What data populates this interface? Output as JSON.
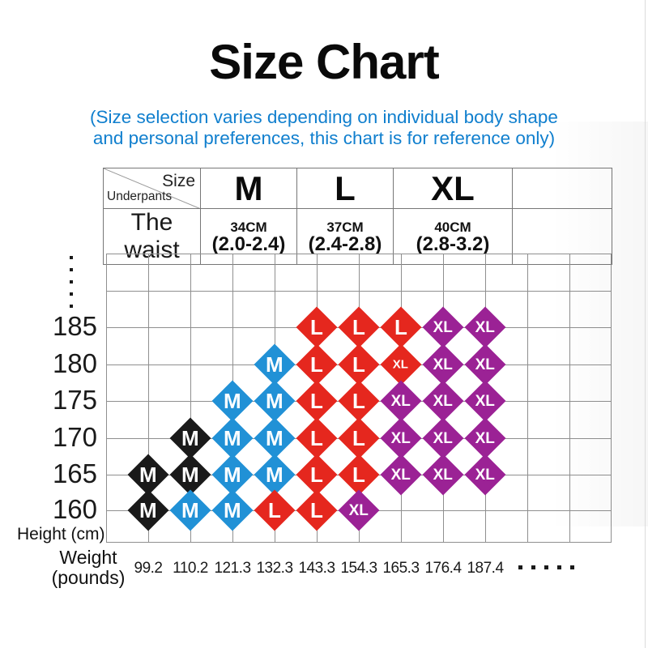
{
  "title": "Size Chart",
  "subtitle": {
    "line1": "(Size selection varies depending on individual body shape",
    "line2": "and personal preferences, this chart is for reference only)",
    "color": "#107fce"
  },
  "header_table": {
    "corner_top_right": "Size",
    "corner_bottom_left": "Underpants",
    "row2_label": "The waist",
    "columns": [
      {
        "size": "M",
        "waist_cm": "34CM",
        "waist_range": "(2.0-2.4)"
      },
      {
        "size": "L",
        "waist_cm": "37CM",
        "waist_range": "(2.4-2.8)"
      },
      {
        "size": "XL",
        "waist_cm": "40CM",
        "waist_range": "(2.8-3.2)"
      }
    ]
  },
  "axes": {
    "y_title": "Height (cm)",
    "x_title_line1": "Weight",
    "x_title_line2": "(pounds)",
    "y_more_dots": 5,
    "x_more_dots": 5
  },
  "colors": {
    "black": "#1a1a1a",
    "blue": "#2191d6",
    "red": "#e5271e",
    "purple": "#9b2295"
  },
  "chart_data": {
    "type": "scatter",
    "title": "Size Chart",
    "xlabel": "Weight (pounds)",
    "ylabel": "Height (cm)",
    "x_ticks": [
      "99.2",
      "110.2",
      "121.3",
      "132.3",
      "143.3",
      "154.3",
      "165.3",
      "176.4",
      "187.4"
    ],
    "y_ticks": [
      185,
      180,
      175,
      170,
      165,
      160
    ],
    "legend": "diamond markers labeled with size; color indicates size group",
    "points": [
      {
        "height": 185,
        "weight": "143.3",
        "size": "L",
        "color": "red"
      },
      {
        "height": 185,
        "weight": "154.3",
        "size": "L",
        "color": "red"
      },
      {
        "height": 185,
        "weight": "165.3",
        "size": "L",
        "color": "red"
      },
      {
        "height": 185,
        "weight": "176.4",
        "size": "XL",
        "color": "purple"
      },
      {
        "height": 185,
        "weight": "187.4",
        "size": "XL",
        "color": "purple"
      },
      {
        "height": 180,
        "weight": "132.3",
        "size": "M",
        "color": "blue"
      },
      {
        "height": 180,
        "weight": "143.3",
        "size": "L",
        "color": "red"
      },
      {
        "height": 180,
        "weight": "154.3",
        "size": "L",
        "color": "red"
      },
      {
        "height": 180,
        "weight": "165.3",
        "size": "XL",
        "color": "red",
        "small": true
      },
      {
        "height": 180,
        "weight": "176.4",
        "size": "XL",
        "color": "purple"
      },
      {
        "height": 180,
        "weight": "187.4",
        "size": "XL",
        "color": "purple"
      },
      {
        "height": 175,
        "weight": "121.3",
        "size": "M",
        "color": "blue"
      },
      {
        "height": 175,
        "weight": "132.3",
        "size": "M",
        "color": "blue"
      },
      {
        "height": 175,
        "weight": "143.3",
        "size": "L",
        "color": "red"
      },
      {
        "height": 175,
        "weight": "154.3",
        "size": "L",
        "color": "red"
      },
      {
        "height": 175,
        "weight": "165.3",
        "size": "XL",
        "color": "purple"
      },
      {
        "height": 175,
        "weight": "176.4",
        "size": "XL",
        "color": "purple"
      },
      {
        "height": 175,
        "weight": "187.4",
        "size": "XL",
        "color": "purple"
      },
      {
        "height": 170,
        "weight": "110.2",
        "size": "M",
        "color": "black"
      },
      {
        "height": 170,
        "weight": "121.3",
        "size": "M",
        "color": "blue"
      },
      {
        "height": 170,
        "weight": "132.3",
        "size": "M",
        "color": "blue"
      },
      {
        "height": 170,
        "weight": "143.3",
        "size": "L",
        "color": "red"
      },
      {
        "height": 170,
        "weight": "154.3",
        "size": "L",
        "color": "red"
      },
      {
        "height": 170,
        "weight": "165.3",
        "size": "XL",
        "color": "purple"
      },
      {
        "height": 170,
        "weight": "176.4",
        "size": "XL",
        "color": "purple"
      },
      {
        "height": 170,
        "weight": "187.4",
        "size": "XL",
        "color": "purple"
      },
      {
        "height": 165,
        "weight": "99.2",
        "size": "M",
        "color": "black"
      },
      {
        "height": 165,
        "weight": "110.2",
        "size": "M",
        "color": "black"
      },
      {
        "height": 165,
        "weight": "121.3",
        "size": "M",
        "color": "blue"
      },
      {
        "height": 165,
        "weight": "132.3",
        "size": "M",
        "color": "blue"
      },
      {
        "height": 165,
        "weight": "143.3",
        "size": "L",
        "color": "red"
      },
      {
        "height": 165,
        "weight": "154.3",
        "size": "L",
        "color": "red"
      },
      {
        "height": 165,
        "weight": "165.3",
        "size": "XL",
        "color": "purple"
      },
      {
        "height": 165,
        "weight": "176.4",
        "size": "XL",
        "color": "purple"
      },
      {
        "height": 165,
        "weight": "187.4",
        "size": "XL",
        "color": "purple"
      },
      {
        "height": 160,
        "weight": "99.2",
        "size": "M",
        "color": "black"
      },
      {
        "height": 160,
        "weight": "110.2",
        "size": "M",
        "color": "blue"
      },
      {
        "height": 160,
        "weight": "121.3",
        "size": "M",
        "color": "blue"
      },
      {
        "height": 160,
        "weight": "132.3",
        "size": "L",
        "color": "red"
      },
      {
        "height": 160,
        "weight": "143.3",
        "size": "L",
        "color": "red"
      },
      {
        "height": 160,
        "weight": "154.3",
        "size": "XL",
        "color": "purple"
      }
    ]
  }
}
